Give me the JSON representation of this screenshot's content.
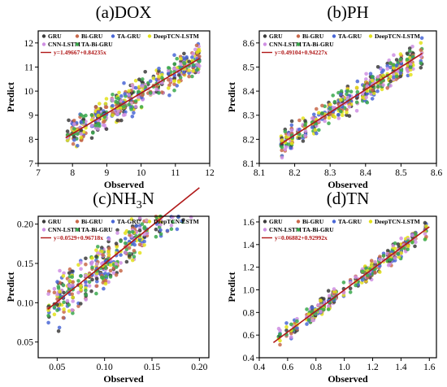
{
  "figure": {
    "colors": {
      "GRU": "#3b3b3b",
      "Bi-GRU": "#c8684a",
      "TA-GRU": "#4a67d6",
      "DeepTCN-LSTM": "#e3e21a",
      "CNN-LSTM": "#cf8fe3",
      "TA-Bi-GRU": "#3aa84c",
      "fit": "#b01818"
    }
  },
  "chart_data": [
    {
      "panel": "a",
      "type": "scatter",
      "title": "(a)DOX",
      "xlabel": "Observed",
      "ylabel": "Predict",
      "xlim": [
        7,
        12
      ],
      "ylim": [
        7,
        12.5
      ],
      "xticks": [
        "7",
        "8",
        "9",
        "10",
        "11",
        "12"
      ],
      "yticks": [
        "7",
        "8",
        "9",
        "10",
        "11",
        "12"
      ],
      "legend_placement": "top-left",
      "legend_columns": 4,
      "series_names": [
        "GRU",
        "Bi-GRU",
        "TA-GRU",
        "DeepTCN-LSTM",
        "CNN-LSTM",
        "TA-Bi-GRU"
      ],
      "fit_label": "y=1.49667+0.84235x",
      "fit": {
        "intercept": 1.49667,
        "slope": 0.84235,
        "x_range": [
          7.8,
          11.7
        ]
      },
      "sample": {
        "x_range": [
          7.8,
          11.7
        ],
        "n": 90,
        "noise": 0.45,
        "seed": 11
      }
    },
    {
      "panel": "b",
      "type": "scatter",
      "title": "(b)PH",
      "xlabel": "Observed",
      "ylabel": "Predict",
      "xlim": [
        8.1,
        8.6
      ],
      "ylim": [
        8.1,
        8.65
      ],
      "xticks": [
        "8.1",
        "8.2",
        "8.3",
        "8.4",
        "8.5",
        "8.6"
      ],
      "yticks": [
        "8.1",
        "8.2",
        "8.3",
        "8.4",
        "8.5",
        "8.6"
      ],
      "legend_placement": "top-left",
      "legend_columns": 4,
      "series_names": [
        "GRU",
        "Bi-GRU",
        "TA-GRU",
        "DeepTCN-LSTM",
        "CNN-LSTM",
        "TA-Bi-GRU"
      ],
      "fit_label": "y=0.49104+0.94227x",
      "fit": {
        "intercept": 0.49104,
        "slope": 0.94227,
        "x_range": [
          8.16,
          8.56
        ]
      },
      "sample": {
        "x_range": [
          8.16,
          8.56
        ],
        "n": 90,
        "noise": 0.04,
        "seed": 23
      }
    },
    {
      "panel": "c",
      "type": "scatter",
      "title": "(c)NH",
      "title_sub": "3",
      "title_suffix": "N",
      "xlabel": "Observed",
      "ylabel": "Predict",
      "xlim": [
        0.03,
        0.21
      ],
      "ylim": [
        0.03,
        0.21
      ],
      "xticks": [
        "0.05",
        "0.10",
        "0.15",
        "0.20"
      ],
      "yticks": [
        "0.05",
        "0.10",
        "0.15",
        "0.20"
      ],
      "legend_placement": "top-left",
      "legend_columns": 4,
      "series_names": [
        "GRU",
        "Bi-GRU",
        "TA-GRU",
        "DeepTCN-LSTM",
        "CNN-LSTM",
        "TA-Bi-GRU"
      ],
      "fit_label": "y=0.0529+0.96718x",
      "fit": {
        "intercept": 0.0529,
        "slope": 0.96718,
        "x_range": [
          0.04,
          0.2
        ]
      },
      "sample": {
        "x_range": [
          0.04,
          0.2
        ],
        "n": 90,
        "noise": 0.022,
        "seed": 37
      }
    },
    {
      "panel": "d",
      "type": "scatter",
      "title": "(d)TN",
      "xlabel": "Observed",
      "ylabel": "Predict",
      "xlim": [
        0.4,
        1.65
      ],
      "ylim": [
        0.4,
        1.65
      ],
      "xticks": [
        "0.4",
        "0.6",
        "0.8",
        "1.0",
        "1.2",
        "1.4",
        "1.6"
      ],
      "yticks": [
        "0.4",
        "0.6",
        "0.8",
        "1.0",
        "1.2",
        "1.4",
        "1.6"
      ],
      "legend_placement": "top-left",
      "legend_columns": 4,
      "series_names": [
        "GRU",
        "Bi-GRU",
        "TA-GRU",
        "DeepTCN-LSTM",
        "CNN-LSTM",
        "TA-Bi-GRU"
      ],
      "fit_label": "y=0.06882+0.92992x",
      "fit": {
        "intercept": 0.06882,
        "slope": 0.92992,
        "x_range": [
          0.5,
          1.6
        ]
      },
      "sample": {
        "x_range": [
          0.5,
          1.6
        ],
        "n": 80,
        "noise": 0.06,
        "seed": 53
      }
    }
  ]
}
